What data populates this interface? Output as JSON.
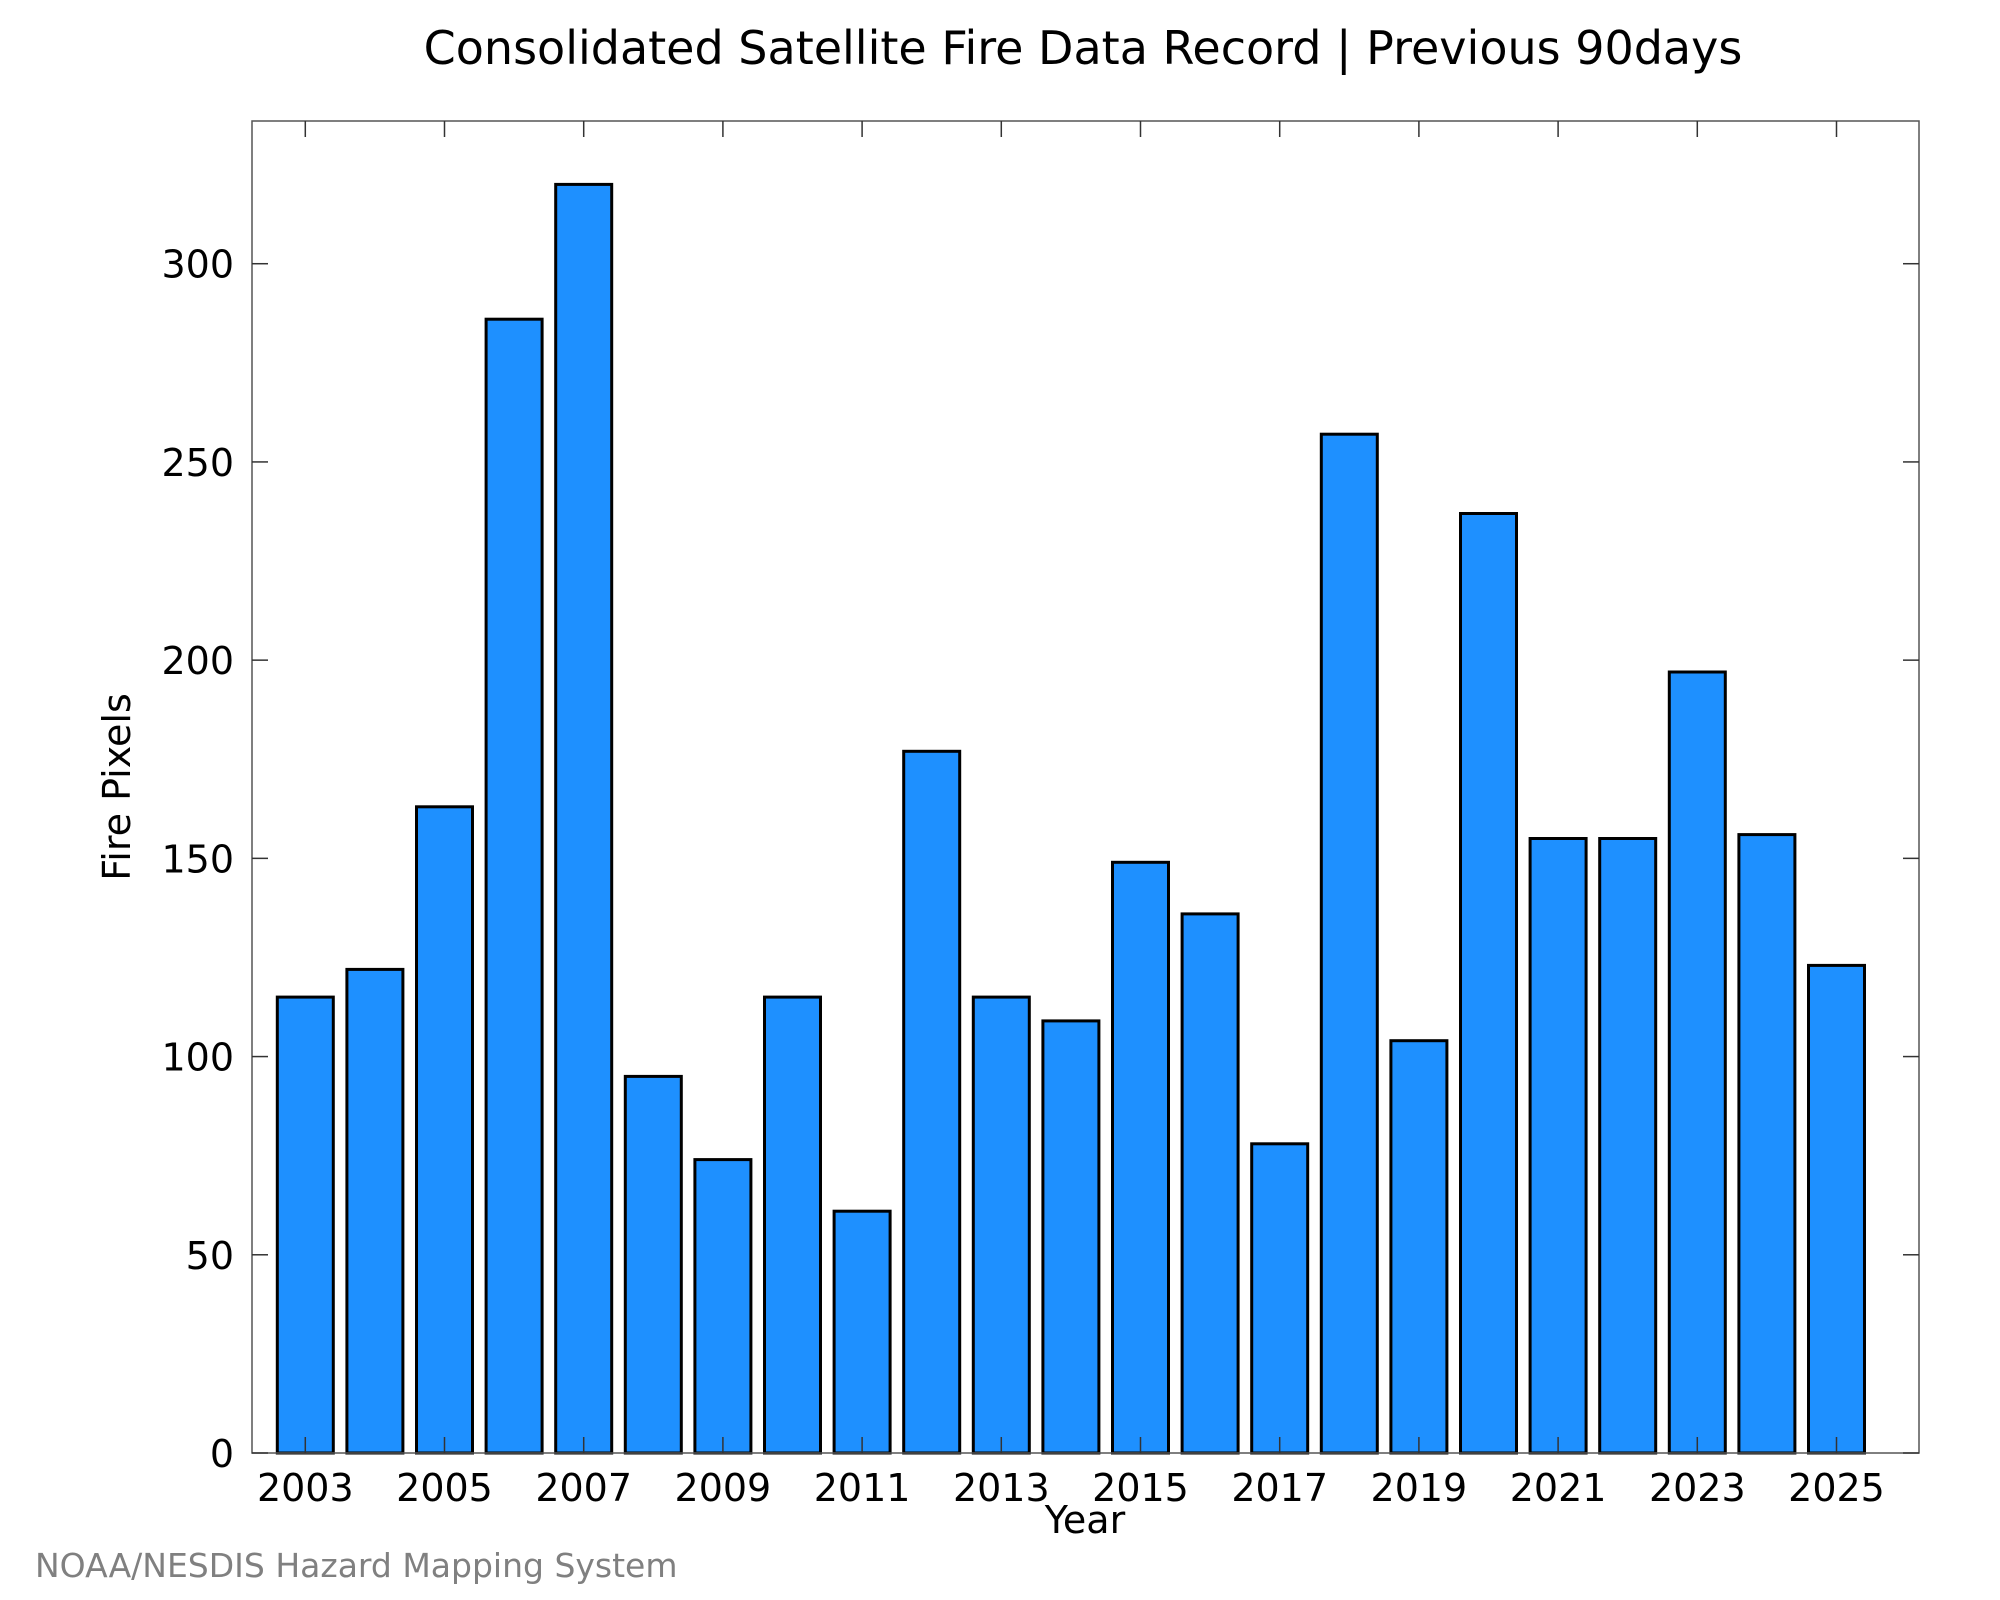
{
  "chart_data": {
    "type": "bar",
    "title": "Consolidated Satellite Fire Data Record | Previous 90days",
    "xlabel": "Year",
    "ylabel": "Fire Pixels",
    "categories": [
      "2003",
      "2004",
      "2005",
      "2006",
      "2007",
      "2008",
      "2009",
      "2010",
      "2011",
      "2012",
      "2013",
      "2014",
      "2015",
      "2016",
      "2017",
      "2018",
      "2019",
      "2020",
      "2021",
      "2022",
      "2023",
      "2024",
      "2025"
    ],
    "x_tick_labels": [
      "2003",
      "2005",
      "2007",
      "2009",
      "2011",
      "2013",
      "2015",
      "2017",
      "2019",
      "2021",
      "2023",
      "2025"
    ],
    "values": [
      115,
      122,
      163,
      286,
      320,
      95,
      74,
      115,
      61,
      177,
      115,
      109,
      149,
      136,
      78,
      257,
      104,
      237,
      155,
      155,
      197,
      156,
      123
    ],
    "y_tick_labels": [
      "0",
      "50",
      "100",
      "150",
      "200",
      "250",
      "300"
    ],
    "ylim": [
      0,
      336
    ],
    "grid": false,
    "legend": false,
    "colors": {
      "bar_fill": "#1e90ff",
      "bar_edge": "#000000",
      "credit_text": "#808080"
    }
  },
  "footer": {
    "credit": "NOAA/NESDIS Hazard Mapping System"
  }
}
